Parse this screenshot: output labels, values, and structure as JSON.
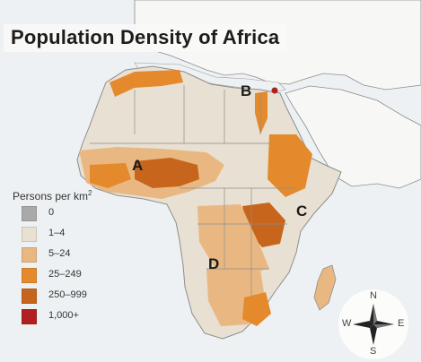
{
  "title": "Population Density of Africa",
  "legend": {
    "title": "Persons per km",
    "title_superscript": "2",
    "items": [
      {
        "label": "0",
        "color": "#a9a9a9"
      },
      {
        "label": "1–4",
        "color": "#e8e0d2"
      },
      {
        "label": "5–24",
        "color": "#e9b882"
      },
      {
        "label": "25–249",
        "color": "#e58a2c"
      },
      {
        "label": "250–999",
        "color": "#c8651d"
      },
      {
        "label": "1,000+",
        "color": "#b11f1f"
      }
    ]
  },
  "markers": [
    {
      "id": "A",
      "label": "A"
    },
    {
      "id": "B",
      "label": "B"
    },
    {
      "id": "C",
      "label": "C"
    },
    {
      "id": "D",
      "label": "D"
    }
  ],
  "compass": {
    "north": "N",
    "south": "S",
    "east": "E",
    "west": "W"
  },
  "colors": {
    "background": "#e9e9e7",
    "water": "#eef1f3",
    "land_other": "#f7f7f5",
    "border": "#8d8d8d"
  }
}
